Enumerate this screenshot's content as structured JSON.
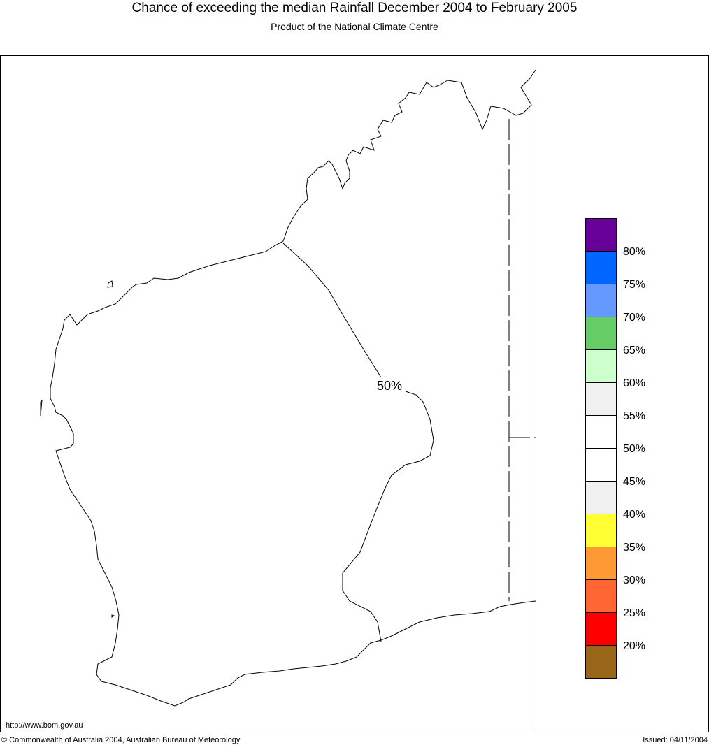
{
  "header": {
    "title": "Chance of exceeding the median Rainfall December 2004 to February 2005",
    "subtitle": "Product of the National Climate Centre"
  },
  "map": {
    "contour_label": "50%",
    "url": "http://www.bom.gov.au"
  },
  "legend": {
    "colors": [
      "#660099",
      "#0066ff",
      "#6699ff",
      "#66cc66",
      "#ccffcc",
      "#f0f0f0",
      "#ffffff",
      "#ffffff",
      "#f0f0f0",
      "#ffff33",
      "#ff9933",
      "#ff6633",
      "#ff0000",
      "#996619"
    ],
    "labels": [
      "80%",
      "75%",
      "70%",
      "65%",
      "60%",
      "55%",
      "50%",
      "45%",
      "40%",
      "35%",
      "30%",
      "25%",
      "20%"
    ]
  },
  "footer": {
    "copyright": "© Commonwealth of Australia 2004, Australian Bureau of Meteorology",
    "issued": "Issued: 04/11/2004"
  }
}
